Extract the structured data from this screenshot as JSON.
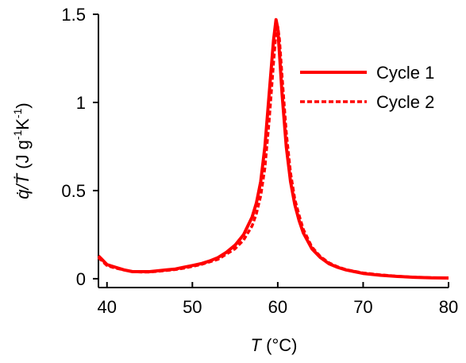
{
  "chart_data": {
    "type": "line",
    "xlabel_var": "T",
    "xlabel_unit": " (°C)",
    "ylabel_var": "q̇/Ṫ",
    "ylabel_unit_prefix": " (J g",
    "ylabel_unit_exp1": "-1",
    "ylabel_unit_mid": "K",
    "ylabel_unit_exp2": "-1",
    "ylabel_unit_suffix": ")",
    "xlim": [
      39,
      80
    ],
    "ylim": [
      -0.05,
      1.5
    ],
    "x_ticks": [
      40,
      50,
      60,
      70,
      80
    ],
    "x_tick_labels": [
      "40",
      "50",
      "60",
      "70",
      "80"
    ],
    "y_ticks": [
      0,
      0.5,
      1,
      1.5
    ],
    "y_tick_labels": [
      "0",
      "0.5",
      "1",
      "1.5"
    ],
    "grid": false,
    "legend_position": "top-right",
    "color": "#ff0000",
    "series": [
      {
        "name": "Cycle 1",
        "style": "solid",
        "x": [
          39,
          40,
          41,
          42,
          43,
          44,
          45,
          46,
          47,
          48,
          49,
          50,
          51,
          52,
          53,
          54,
          55,
          56,
          57,
          57.5,
          58,
          58.5,
          59,
          59.5,
          59.8,
          60,
          60.2,
          60.5,
          61,
          61.5,
          62,
          62.5,
          63,
          64,
          65,
          66,
          67,
          68,
          69,
          70,
          72,
          74,
          76,
          78,
          80
        ],
        "y": [
          0.13,
          0.08,
          0.065,
          0.05,
          0.04,
          0.04,
          0.04,
          0.045,
          0.05,
          0.055,
          0.065,
          0.075,
          0.085,
          0.1,
          0.12,
          0.15,
          0.19,
          0.25,
          0.35,
          0.43,
          0.55,
          0.75,
          1.05,
          1.35,
          1.47,
          1.42,
          1.28,
          1.05,
          0.75,
          0.55,
          0.42,
          0.33,
          0.26,
          0.17,
          0.12,
          0.085,
          0.065,
          0.05,
          0.04,
          0.03,
          0.02,
          0.013,
          0.008,
          0.005,
          0.004
        ]
      },
      {
        "name": "Cycle 2",
        "style": "dashed",
        "x": [
          39,
          40,
          41,
          42,
          43,
          44,
          45,
          46,
          47,
          48,
          49,
          50,
          51,
          52,
          53,
          54,
          55,
          56,
          57,
          57.5,
          58,
          58.5,
          59,
          59.5,
          59.8,
          60,
          60.2,
          60.5,
          61,
          61.5,
          62,
          62.5,
          63,
          64,
          65,
          66,
          67,
          68,
          69,
          70,
          72,
          74,
          76,
          78,
          80
        ],
        "y": [
          0.12,
          0.075,
          0.06,
          0.05,
          0.04,
          0.038,
          0.038,
          0.042,
          0.047,
          0.052,
          0.06,
          0.07,
          0.08,
          0.095,
          0.11,
          0.14,
          0.17,
          0.22,
          0.3,
          0.37,
          0.47,
          0.63,
          0.9,
          1.22,
          1.4,
          1.43,
          1.36,
          1.15,
          0.83,
          0.6,
          0.45,
          0.36,
          0.28,
          0.18,
          0.125,
          0.09,
          0.068,
          0.052,
          0.042,
          0.033,
          0.022,
          0.014,
          0.009,
          0.006,
          0.004
        ]
      }
    ]
  }
}
